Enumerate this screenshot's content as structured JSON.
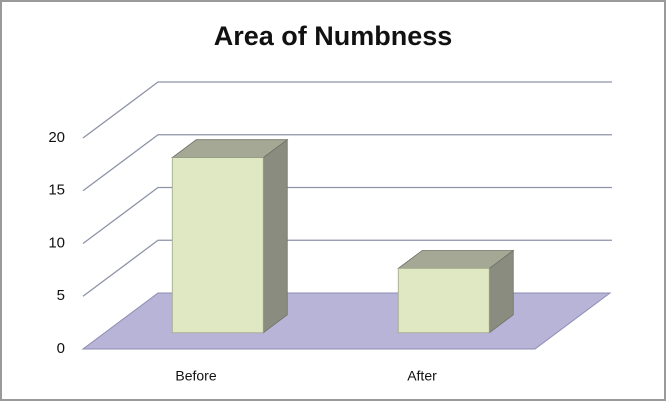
{
  "chart_data": {
    "type": "bar3d",
    "title": "Area of Numbness",
    "categories": [
      "Before",
      "After"
    ],
    "values": [
      16.6,
      6.1
    ],
    "ylim": [
      0,
      20
    ],
    "yticks": [
      0,
      5,
      10,
      15,
      20
    ],
    "grid": true,
    "color": "#dfe8c3",
    "floor_color": "#b7b4d8"
  }
}
